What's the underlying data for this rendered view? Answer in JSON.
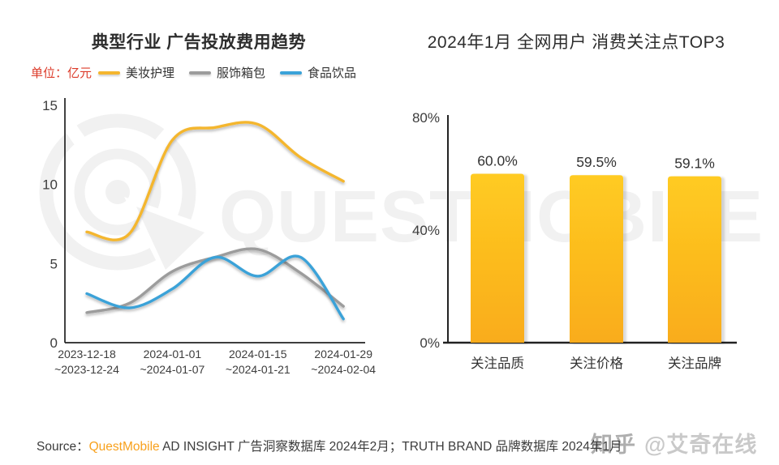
{
  "colors": {
    "unit_label_red": "#dc3b2a",
    "beauty_yellow": "#f4b62f",
    "apparel_gray": "#9c9c9c",
    "food_blue": "#3aa2d8",
    "bar_top": "#ffcb21",
    "bar_bottom": "#f9ac1c",
    "axis": "#222222",
    "tick_text": "#3d3d3d",
    "label_text": "#333333",
    "watermark": "#f1f1f1",
    "source_brand_orange": "#f8a11d"
  },
  "left_chart": {
    "title": "典型行业 广告投放费用趋势",
    "unit_label": "单位：亿元"
  },
  "right_chart": {
    "title": "2024年1月 全网用户 消费关注点TOP3"
  },
  "watermarks": {
    "big_text": "QUESTMOBILE",
    "zhihu": "知乎",
    "zhihu_handle": "@艾奇在线"
  },
  "source": {
    "label": "Source：",
    "brand": "QuestMobile",
    "rest": " AD INSIGHT 广告洞察数据库 2024年2月；TRUTH BRAND 品牌数据库 2024年1月"
  },
  "chart_data": [
    {
      "type": "line",
      "title": "典型行业 广告投放费用趋势",
      "unit": "亿元",
      "n_points": 7,
      "x_tick_labels": [
        {
          "line1": "2023-12-18",
          "line2": "~2023-12-24",
          "point_index": 0
        },
        {
          "line1": "2024-01-01",
          "line2": "~2024-01-07",
          "point_index": 2
        },
        {
          "line1": "2024-01-15",
          "line2": "~2024-01-21",
          "point_index": 4
        },
        {
          "line1": "2024-01-29",
          "line2": "~2024-02-04",
          "point_index": 6
        }
      ],
      "series": [
        {
          "name": "美妆护理",
          "color": "#f4b62f",
          "values": [
            7.0,
            6.9,
            12.8,
            13.6,
            13.8,
            11.7,
            10.2
          ]
        },
        {
          "name": "服饰箱包",
          "color": "#9c9c9c",
          "values": [
            1.9,
            2.5,
            4.5,
            5.4,
            5.9,
            4.4,
            2.3
          ]
        },
        {
          "name": "食品饮品",
          "color": "#3aa2d8",
          "values": [
            3.1,
            2.2,
            3.4,
            5.4,
            4.2,
            5.4,
            1.5
          ]
        }
      ],
      "ylim": [
        0,
        15
      ],
      "yticks": [
        0,
        5,
        10,
        15
      ],
      "grid": false,
      "legend_position": "top"
    },
    {
      "type": "bar",
      "title": "2024年1月 全网用户 消费关注点TOP3",
      "categories": [
        "关注品质",
        "关注价格",
        "关注品牌"
      ],
      "values": [
        60.0,
        59.5,
        59.1
      ],
      "value_labels": [
        "60.0%",
        "59.5%",
        "59.1%"
      ],
      "ylim": [
        0,
        80
      ],
      "yticks": [
        {
          "v": 0,
          "label": "0%"
        },
        {
          "v": 40,
          "label": "40%"
        },
        {
          "v": 80,
          "label": "80%"
        }
      ],
      "grid": false,
      "legend_position": "none"
    }
  ]
}
